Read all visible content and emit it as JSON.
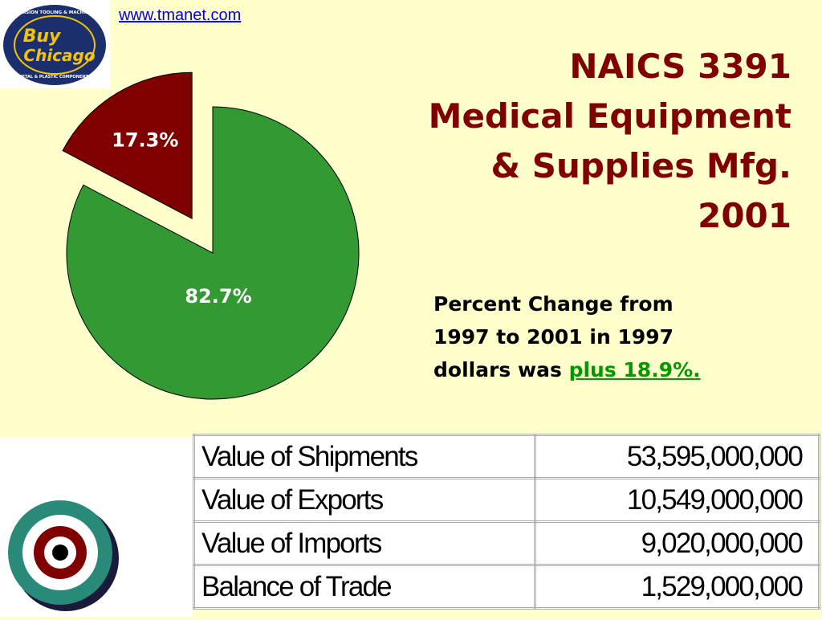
{
  "link": "www.tmanet.com",
  "logo": {
    "top": "PRECISION TOOLING & MACHINING",
    "brand": [
      "Buy",
      "Chicago"
    ],
    "bottom": "METAL & PLASTIC COMPONENTS"
  },
  "title": [
    "NAICS 3391",
    "Medical Equipment",
    "& Supplies Mfg.",
    "2001"
  ],
  "note": {
    "lines": [
      "Percent Change from",
      "1997 to 2001 in 1997",
      "dollars was"
    ],
    "highlight": "plus 18.9%."
  },
  "chart_data": {
    "type": "pie",
    "values": [
      17.3,
      82.7
    ],
    "value_labels": [
      "17.3%",
      "82.7%"
    ],
    "colors": [
      "#800000",
      "#339933"
    ],
    "explode": [
      true,
      false
    ]
  },
  "table": {
    "rows": [
      [
        "Value of Shipments",
        "53,595,000,000"
      ],
      [
        "Value of Exports",
        "10,549,000,000"
      ],
      [
        "Value of Imports",
        "9,020,000,000"
      ],
      [
        "Balance of Trade",
        "1,529,000,000"
      ]
    ]
  }
}
